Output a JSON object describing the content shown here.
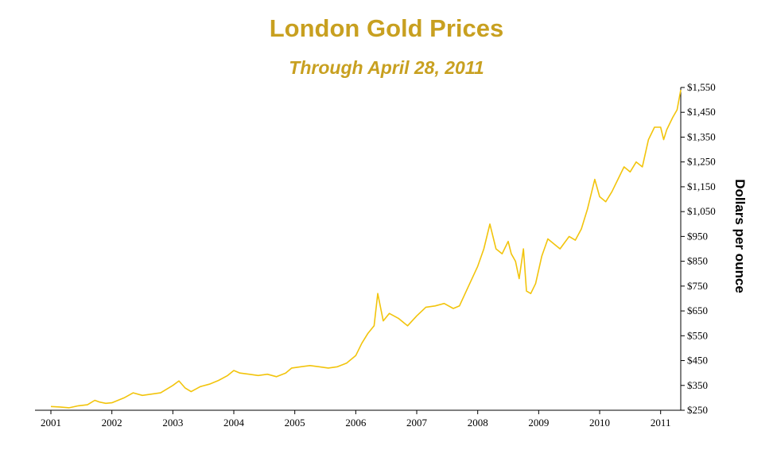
{
  "chart_data": {
    "type": "line",
    "title": "London Gold Prices",
    "subtitle": "Through April 28, 2011",
    "ylabel": "Dollars per ounce",
    "xlabel": "",
    "x_tick_labels": [
      "2001",
      "2002",
      "2003",
      "2004",
      "2005",
      "2006",
      "2007",
      "2008",
      "2009",
      "2010",
      "2011"
    ],
    "y_tick_labels": [
      "$250",
      "$350",
      "$450",
      "$550",
      "$650",
      "$750",
      "$850",
      "$950",
      "$1,050",
      "$1,150",
      "$1,250",
      "$1,350",
      "$1,450",
      "$1,550"
    ],
    "ylim": [
      250,
      1550
    ],
    "xlim": [
      2001.0,
      2011.33
    ],
    "grid": false,
    "line_color": "#f2c40c",
    "series": [
      {
        "x": [
          2001.0,
          2001.15,
          2001.3,
          2001.45,
          2001.6,
          2001.72,
          2001.8,
          2001.9,
          2002.0,
          2002.2,
          2002.35,
          2002.5,
          2002.65,
          2002.8,
          2003.0,
          2003.1,
          2003.2,
          2003.3,
          2003.45,
          2003.6,
          2003.75,
          2003.9,
          2004.0,
          2004.1,
          2004.25,
          2004.4,
          2004.55,
          2004.7,
          2004.85,
          2004.95,
          2005.1,
          2005.25,
          2005.4,
          2005.55,
          2005.7,
          2005.85,
          2006.0,
          2006.1,
          2006.2,
          2006.3,
          2006.36,
          2006.45,
          2006.55,
          2006.7,
          2006.85,
          2007.0,
          2007.15,
          2007.3,
          2007.45,
          2007.6,
          2007.7,
          2007.85,
          2008.0,
          2008.1,
          2008.2,
          2008.3,
          2008.4,
          2008.5,
          2008.55,
          2008.62,
          2008.68,
          2008.75,
          2008.8,
          2008.87,
          2008.95,
          2009.05,
          2009.15,
          2009.25,
          2009.35,
          2009.5,
          2009.6,
          2009.7,
          2009.8,
          2009.92,
          2010.0,
          2010.1,
          2010.2,
          2010.3,
          2010.4,
          2010.5,
          2010.6,
          2010.7,
          2010.8,
          2010.9,
          2011.0,
          2011.05,
          2011.1,
          2011.2,
          2011.27,
          2011.33
        ],
        "values": [
          265,
          263,
          260,
          268,
          272,
          290,
          283,
          278,
          280,
          300,
          320,
          310,
          315,
          320,
          350,
          368,
          340,
          325,
          345,
          355,
          370,
          390,
          410,
          400,
          395,
          390,
          395,
          385,
          400,
          420,
          425,
          430,
          425,
          420,
          425,
          440,
          470,
          520,
          560,
          590,
          720,
          610,
          640,
          620,
          590,
          630,
          665,
          670,
          680,
          660,
          670,
          750,
          830,
          900,
          1000,
          900,
          880,
          930,
          880,
          850,
          780,
          900,
          730,
          720,
          760,
          870,
          940,
          920,
          900,
          950,
          935,
          980,
          1060,
          1180,
          1110,
          1090,
          1130,
          1180,
          1230,
          1210,
          1250,
          1230,
          1340,
          1390,
          1390,
          1340,
          1380,
          1430,
          1460,
          1540
        ]
      }
    ]
  }
}
